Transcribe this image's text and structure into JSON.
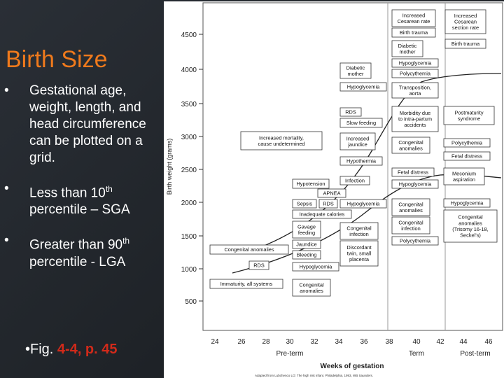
{
  "slide": {
    "title": "Birth Size",
    "bullet_symbol": "•",
    "bullets": [
      {
        "text": "Gestational age, weight, length, and head circumference can be plotted on a grid.",
        "sup": "",
        "suffix": ""
      },
      {
        "text": "Less than 10",
        "sup": "th",
        "suffix": " percentile – SGA"
      },
      {
        "text": "Greater than 90",
        "sup": "th",
        "suffix": " percentile - LGA"
      }
    ],
    "figure_ref": {
      "prefix": "•Fig. ",
      "highlight": "4-4, p. 45"
    }
  },
  "chart": {
    "y_axis_label": "Birth weight (grams)",
    "x_axis_label": "Weeks of gestation",
    "y_ticks": [
      "4500",
      "4000",
      "3500",
      "3000",
      "2500",
      "2000",
      "1500",
      "1000",
      "500"
    ],
    "x_ticks": [
      "24",
      "26",
      "28",
      "30",
      "32",
      "34",
      "36",
      "38",
      "40",
      "42",
      "44",
      "46"
    ],
    "zones": [
      "Pre-term",
      "Term",
      "Post-term"
    ],
    "footnote": "Adapted from Lubchenco LO: The high risk infant. Philadelphia, 1993, WB Saunders.",
    "boxes": [
      {
        "key": "b01",
        "lines": [
          "Increased",
          "Cesarean rate"
        ]
      },
      {
        "key": "b02",
        "lines": [
          "Increased",
          "Cesarean",
          "section rate"
        ]
      },
      {
        "key": "b03",
        "lines": [
          "Birth trauma"
        ]
      },
      {
        "key": "b04",
        "lines": [
          "Diabetic",
          "mother"
        ]
      },
      {
        "key": "b05",
        "lines": [
          "Birth trauma"
        ]
      },
      {
        "key": "b06",
        "lines": [
          "Hypoglycemia"
        ]
      },
      {
        "key": "b07",
        "lines": [
          "Diabetic",
          "mother"
        ]
      },
      {
        "key": "b08",
        "lines": [
          "Polycythemia"
        ]
      },
      {
        "key": "b09",
        "lines": [
          "Hypoglycemia"
        ]
      },
      {
        "key": "b10",
        "lines": [
          "Transposition,",
          "aorta"
        ]
      },
      {
        "key": "b11",
        "lines": [
          "RDS"
        ]
      },
      {
        "key": "b12",
        "lines": [
          "Morbidity due",
          "to intra-partum",
          "accidents"
        ]
      },
      {
        "key": "b13",
        "lines": [
          "Postmaturity",
          "syndrome"
        ]
      },
      {
        "key": "b14",
        "lines": [
          "Slow feeding"
        ]
      },
      {
        "key": "b15",
        "lines": [
          "Increased mortality,",
          "cause undetermined"
        ]
      },
      {
        "key": "b16",
        "lines": [
          "Increased",
          "jaundice"
        ]
      },
      {
        "key": "b17",
        "lines": [
          "Congenital",
          "anomalies"
        ]
      },
      {
        "key": "b18",
        "lines": [
          "Polycythemia"
        ]
      },
      {
        "key": "b19",
        "lines": [
          "Fetal distress"
        ]
      },
      {
        "key": "b20",
        "lines": [
          "Hypothermia"
        ]
      },
      {
        "key": "b21",
        "lines": [
          "Fetal distress"
        ]
      },
      {
        "key": "b22",
        "lines": [
          "Meconium",
          "aspiration"
        ]
      },
      {
        "key": "b23",
        "lines": [
          "Infection"
        ]
      },
      {
        "key": "b24",
        "lines": [
          "Hypotension"
        ]
      },
      {
        "key": "b25",
        "lines": [
          "Hypoglycemia"
        ]
      },
      {
        "key": "b26",
        "lines": [
          "APNEA"
        ]
      },
      {
        "key": "b27",
        "lines": [
          "Sepsis"
        ]
      },
      {
        "key": "b28",
        "lines": [
          "RDS"
        ]
      },
      {
        "key": "b29",
        "lines": [
          "Hypoglycemia"
        ]
      },
      {
        "key": "b30",
        "lines": [
          "Congenital",
          "anomalies"
        ]
      },
      {
        "key": "b31",
        "lines": [
          "Hypoglycemia"
        ]
      },
      {
        "key": "b32",
        "lines": [
          "Inadequate calories"
        ]
      },
      {
        "key": "b33",
        "lines": [
          "Congenital",
          "infection"
        ]
      },
      {
        "key": "b34",
        "lines": [
          "Congenital",
          "anomalies",
          "(Trisomy 16-18,",
          "Seckel's)"
        ]
      },
      {
        "key": "b35",
        "lines": [
          "Gavage",
          "feeding"
        ]
      },
      {
        "key": "b36",
        "lines": [
          "Congenital",
          "infection"
        ]
      },
      {
        "key": "b37",
        "lines": [
          "Polycythemia"
        ]
      },
      {
        "key": "b38",
        "lines": [
          "Jaundice"
        ]
      },
      {
        "key": "b39",
        "lines": [
          "Congenital anomalies"
        ]
      },
      {
        "key": "b40",
        "lines": [
          "Bleeding"
        ]
      },
      {
        "key": "b41",
        "lines": [
          "Discordant",
          "twin, small",
          "placenta"
        ]
      },
      {
        "key": "b42",
        "lines": [
          "RDS"
        ]
      },
      {
        "key": "b43",
        "lines": [
          "Hypoglycemia"
        ]
      },
      {
        "key": "b44",
        "lines": [
          "Immaturity, all systems"
        ]
      },
      {
        "key": "b45",
        "lines": [
          "Congenital",
          "anomalies"
        ]
      }
    ]
  }
}
